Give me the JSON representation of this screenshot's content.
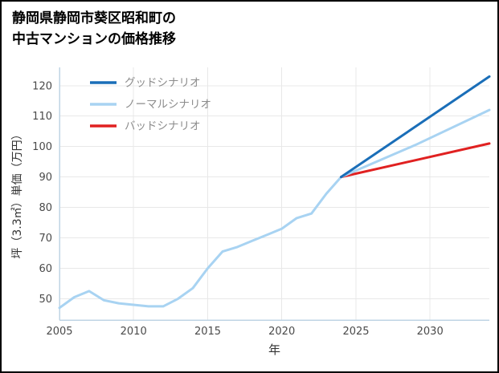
{
  "page": {
    "title_line1": "静岡県静岡市葵区昭和町の",
    "title_line2": "中古マンションの価格推移"
  },
  "chart_data": {
    "type": "line",
    "title": "静岡県静岡市葵区昭和町の中古マンションの価格推移",
    "xlabel": "年",
    "ylabel": "坪（3.3㎡）単価（万円）",
    "xlim": [
      2005,
      2034
    ],
    "ylim": [
      43,
      126
    ],
    "x_ticks": [
      2005,
      2010,
      2015,
      2020,
      2025,
      2030
    ],
    "y_ticks": [
      50,
      60,
      70,
      80,
      90,
      100,
      110,
      120
    ],
    "grid": true,
    "legend_position": "top-left",
    "colors": {
      "grid": "#e8e8e8",
      "axis": "#bfd4e4",
      "tick": "#4a4a4a",
      "axis_label": "#333333",
      "legend_text": "#8c8c8c",
      "good": "#1a6eb8",
      "normal": "#a8d3f2",
      "bad": "#e02121"
    },
    "series": [
      {
        "key": "history",
        "name": "",
        "in_legend": false,
        "color": "#a8d3f2",
        "x": [
          2005,
          2006,
          2007,
          2008,
          2009,
          2010,
          2011,
          2012,
          2013,
          2014,
          2015,
          2016,
          2017,
          2018,
          2019,
          2020,
          2021,
          2022,
          2023,
          2024
        ],
        "values": [
          47,
          50.5,
          52.5,
          49.5,
          48.5,
          48,
          47.5,
          47.5,
          50,
          53.5,
          60,
          65.5,
          67,
          69,
          71,
          73,
          76.5,
          78,
          84.5,
          90
        ]
      },
      {
        "key": "good",
        "name": "グッドシナリオ",
        "in_legend": true,
        "color": "#1a6eb8",
        "x": [
          2024,
          2034
        ],
        "values": [
          90,
          123
        ]
      },
      {
        "key": "normal",
        "name": "ノーマルシナリオ",
        "in_legend": true,
        "color": "#a8d3f2",
        "x": [
          2024,
          2029,
          2034
        ],
        "values": [
          90,
          100.5,
          112
        ]
      },
      {
        "key": "bad",
        "name": "バッドシナリオ",
        "in_legend": true,
        "color": "#e02121",
        "x": [
          2024,
          2034
        ],
        "values": [
          90,
          101
        ]
      }
    ]
  }
}
